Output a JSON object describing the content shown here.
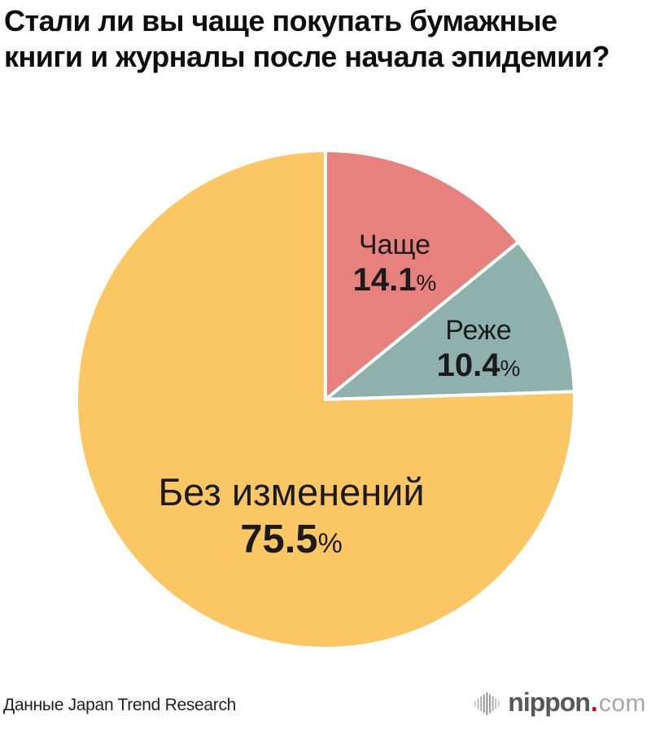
{
  "title": "Стали ли вы чаще покупать бумажные книги и журналы после начала эпидемии?",
  "chart_data": {
    "type": "pie",
    "title": "Стали ли вы чаще покупать бумажные книги и журналы после начала эпидемии?",
    "start_angle_deg": 0,
    "direction": "clockwise",
    "legend": "none",
    "labels_position": "inside-slices",
    "separator_color": "#ffffff",
    "slices": [
      {
        "label": "Чаще",
        "value": 14.1,
        "unit": "%",
        "color": "#E6817D"
      },
      {
        "label": "Реже",
        "value": 10.4,
        "unit": "%",
        "color": "#8FB1AC"
      },
      {
        "label": "Без изменений",
        "value": 75.5,
        "unit": "%",
        "color": "#FBC765"
      }
    ]
  },
  "footer": {
    "source": "Данные Japan Trend Research",
    "logo": {
      "name": "nippon",
      "dot": ".",
      "tld": "com",
      "name_color": "#595757",
      "tld_color": "#a6a6a6",
      "accent_color": "#e60012",
      "mark": "waveform-bars-icon"
    }
  }
}
